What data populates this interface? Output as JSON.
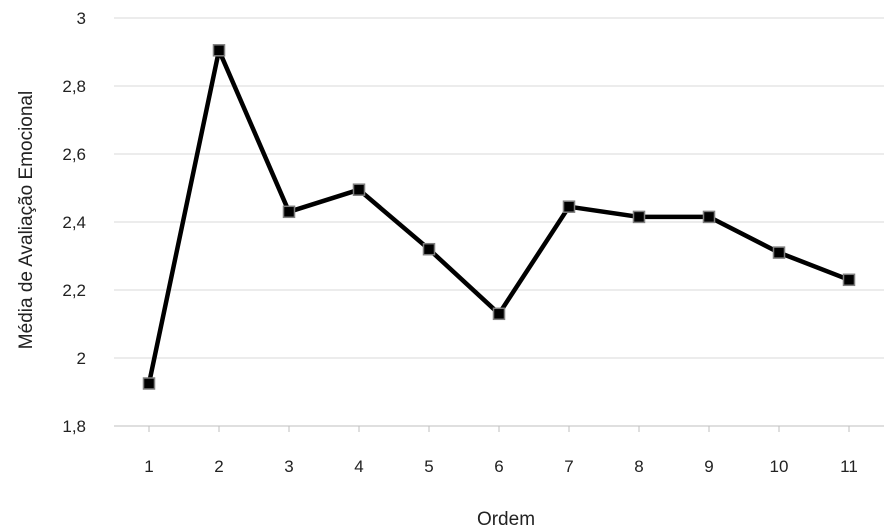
{
  "chart_data": {
    "type": "line",
    "title": "",
    "xlabel": "Ordem",
    "ylabel": "Média de Avaliação Emocional",
    "categories": [
      "1",
      "2",
      "3",
      "4",
      "5",
      "6",
      "7",
      "8",
      "9",
      "10",
      "11"
    ],
    "ylim": [
      1.8,
      3
    ],
    "yticks": [
      1.8,
      2,
      2.2,
      2.4,
      2.6,
      2.8,
      3
    ],
    "ytick_labels": [
      "1,8",
      "2",
      "2,2",
      "2,4",
      "2,6",
      "2,8",
      "3"
    ],
    "grid": "horizontal",
    "legend": "none",
    "series": [
      {
        "values": [
          1.925,
          2.905,
          2.43,
          2.495,
          2.32,
          2.13,
          2.445,
          2.415,
          2.415,
          2.31,
          2.23
        ],
        "line_color": "#000000",
        "marker": "square",
        "marker_color": "#000000"
      }
    ]
  }
}
